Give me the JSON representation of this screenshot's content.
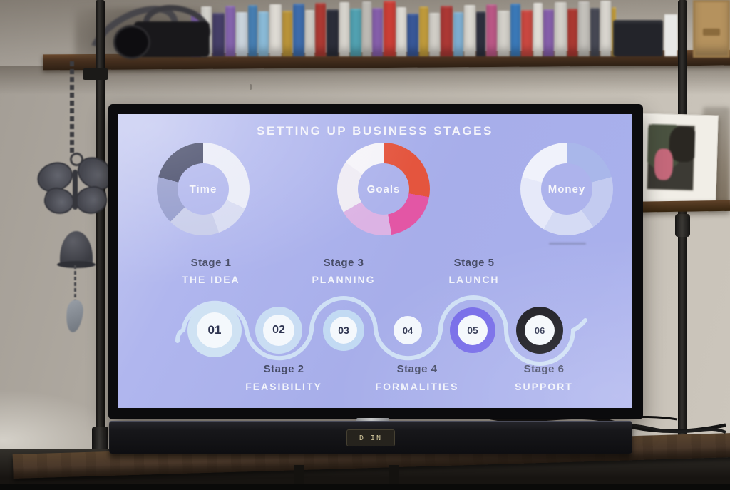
{
  "screen": {
    "title": "SETTING UP BUSINESS STAGES",
    "donuts": [
      {
        "label": "Time",
        "segments": [
          {
            "color": "#e9ebf7",
            "deg": 115
          },
          {
            "color": "#d6daf1",
            "deg": 45
          },
          {
            "color": "#c6cbe9",
            "deg": 65
          },
          {
            "color": "#8e96c9",
            "deg": 60
          },
          {
            "color": "#3b4060",
            "deg": 75
          }
        ]
      },
      {
        "label": "Goals",
        "segments": [
          {
            "color": "#e4553e",
            "deg": 100
          },
          {
            "color": "#e356a5",
            "deg": 70
          },
          {
            "color": "#dcb3e4",
            "deg": 70
          },
          {
            "color": "#efecf4",
            "deg": 65
          },
          {
            "color": "#f5f4f9",
            "deg": 55
          }
        ]
      },
      {
        "label": "Money",
        "segments": [
          {
            "color": "#a9b7ea",
            "deg": 75
          },
          {
            "color": "#c3cbf0",
            "deg": 70
          },
          {
            "color": "#d5dbf4",
            "deg": 65
          },
          {
            "color": "#e6e9f9",
            "deg": 75
          },
          {
            "color": "#f0f2fb",
            "deg": 75
          }
        ]
      }
    ],
    "stages": [
      {
        "number": "01",
        "stage": "Stage 1",
        "label": "THE IDEA",
        "ring": "#cfe2f3"
      },
      {
        "number": "02",
        "stage": "Stage 2",
        "label": "FEASIBILITY",
        "ring": "#c9ddf3"
      },
      {
        "number": "03",
        "stage": "Stage 3",
        "label": "PLANNING",
        "ring": "#c2daf3"
      },
      {
        "number": "04",
        "stage": "Stage 4",
        "label": "FORMALITIES",
        "ring": "#f3f7fc"
      },
      {
        "number": "05",
        "stage": "Stage 5",
        "label": "LAUNCH",
        "ring": "#756ae8"
      },
      {
        "number": "06",
        "stage": "Stage 6",
        "label": "SUPPORT",
        "ring": "#17171e"
      }
    ],
    "colors": {
      "background": "#aab1ec",
      "title_text": "#f4f4fa",
      "stage_name_text": "#474c66",
      "stage_sub_text": "#f2f4fb",
      "number_text": "#2e3450",
      "wave_line": "#d6e9f7",
      "accent_purple": "#756ae8",
      "accent_orange": "#e4553e",
      "accent_pink": "#e356a5",
      "accent_dark": "#17171e"
    }
  },
  "soundbar": {
    "display_text": "D IN"
  },
  "shelf": {
    "dvd_spines": [
      "#7b5fa6",
      "#d9d7d2",
      "#47406a",
      "#8a68b4",
      "#cfd9e2",
      "#4a85bb",
      "#8fc0de",
      "#e3e0d9",
      "#c19a3c",
      "#3f6fb0",
      "#d8d5ce",
      "#b23b34",
      "#2c2e3a",
      "#e0ddd6",
      "#54a6b6",
      "#c7c4be",
      "#8a62b0",
      "#d04038",
      "#e6e3dc",
      "#3a5a9c",
      "#c9a23e",
      "#d8d5ce",
      "#b03a36",
      "#83b5d9",
      "#e0ddd6",
      "#2f3140",
      "#c05a8a",
      "#d8d5ce",
      "#3d7ec0",
      "#cf4a42",
      "#ece9e2",
      "#8a62b0",
      "#d8d5ce",
      "#b23b34",
      "#c9c6c0",
      "#4a4c58",
      "#e0ddd6",
      "#c9a23e"
    ]
  }
}
